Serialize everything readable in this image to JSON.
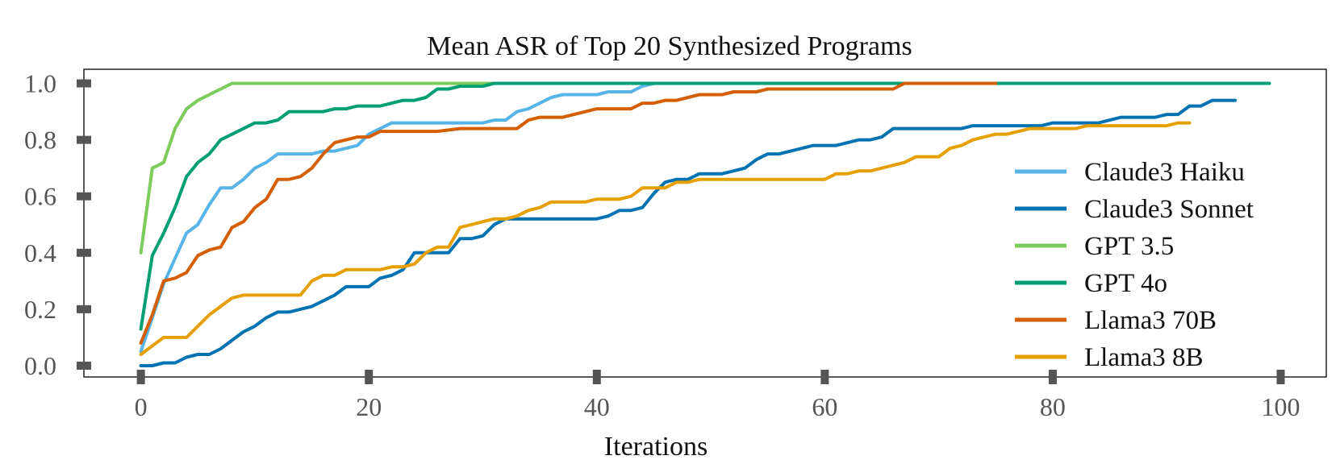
{
  "chart_data": {
    "type": "line",
    "title": "Mean ASR of Top 20 Synthesized Programs",
    "xlabel": "Iterations",
    "ylabel": "",
    "xlim": [
      -5,
      104
    ],
    "ylim": [
      -0.04,
      1.05
    ],
    "xticks": [
      0,
      20,
      40,
      60,
      80,
      100
    ],
    "xtick_labels": [
      "0",
      "20",
      "40",
      "60",
      "80",
      "100"
    ],
    "yticks": [
      0.0,
      0.2,
      0.4,
      0.6,
      0.8,
      1.0
    ],
    "ytick_labels": [
      "0.0",
      "0.2",
      "0.4",
      "0.6",
      "0.8",
      "1.0"
    ],
    "grid": false,
    "legend_position": "center-right",
    "series": [
      {
        "name": "Claude3 Haiku",
        "color": "#56B4E9",
        "x": [
          0,
          1,
          2,
          3,
          4,
          5,
          6,
          7,
          8,
          9,
          10,
          11,
          12,
          13,
          14,
          15,
          16,
          17,
          18,
          19,
          20,
          21,
          22,
          23,
          24,
          25,
          26,
          27,
          28,
          29,
          30,
          31,
          32,
          33,
          34,
          35,
          36,
          37,
          38,
          39,
          40,
          41,
          42,
          43,
          44,
          45,
          46,
          50,
          60,
          70,
          80,
          90,
          99
        ],
        "y": [
          0.05,
          0.17,
          0.29,
          0.38,
          0.47,
          0.5,
          0.57,
          0.63,
          0.63,
          0.66,
          0.7,
          0.72,
          0.75,
          0.75,
          0.75,
          0.75,
          0.76,
          0.76,
          0.77,
          0.78,
          0.82,
          0.84,
          0.86,
          0.86,
          0.86,
          0.86,
          0.86,
          0.86,
          0.86,
          0.86,
          0.86,
          0.87,
          0.87,
          0.9,
          0.91,
          0.93,
          0.95,
          0.96,
          0.96,
          0.96,
          0.96,
          0.97,
          0.97,
          0.97,
          0.99,
          1.0,
          1.0,
          1.0,
          1.0,
          1.0,
          1.0,
          1.0,
          1.0
        ]
      },
      {
        "name": "Claude3 Sonnet",
        "color": "#0072B2",
        "x": [
          0,
          1,
          2,
          3,
          4,
          5,
          6,
          7,
          8,
          9,
          10,
          11,
          12,
          13,
          14,
          15,
          16,
          17,
          18,
          19,
          20,
          21,
          22,
          23,
          24,
          25,
          26,
          27,
          28,
          29,
          30,
          31,
          32,
          33,
          34,
          35,
          36,
          37,
          38,
          39,
          40,
          41,
          42,
          43,
          44,
          45,
          46,
          47,
          48,
          49,
          50,
          51,
          52,
          53,
          54,
          55,
          56,
          57,
          58,
          59,
          60,
          61,
          62,
          63,
          64,
          65,
          66,
          67,
          68,
          69,
          70,
          71,
          72,
          73,
          74,
          75,
          76,
          77,
          78,
          79,
          80,
          81,
          82,
          83,
          84,
          85,
          86,
          87,
          88,
          89,
          90,
          91,
          92,
          93,
          94,
          95,
          96
        ],
        "y": [
          0.0,
          0.0,
          0.01,
          0.01,
          0.03,
          0.04,
          0.04,
          0.06,
          0.09,
          0.12,
          0.14,
          0.17,
          0.19,
          0.19,
          0.2,
          0.21,
          0.23,
          0.25,
          0.28,
          0.28,
          0.28,
          0.31,
          0.32,
          0.34,
          0.4,
          0.4,
          0.4,
          0.4,
          0.45,
          0.45,
          0.46,
          0.5,
          0.52,
          0.52,
          0.52,
          0.52,
          0.52,
          0.52,
          0.52,
          0.52,
          0.52,
          0.53,
          0.55,
          0.55,
          0.56,
          0.61,
          0.65,
          0.66,
          0.66,
          0.68,
          0.68,
          0.68,
          0.69,
          0.7,
          0.73,
          0.75,
          0.75,
          0.76,
          0.77,
          0.78,
          0.78,
          0.78,
          0.79,
          0.8,
          0.8,
          0.81,
          0.84,
          0.84,
          0.84,
          0.84,
          0.84,
          0.84,
          0.84,
          0.85,
          0.85,
          0.85,
          0.85,
          0.85,
          0.85,
          0.85,
          0.86,
          0.86,
          0.86,
          0.86,
          0.86,
          0.87,
          0.88,
          0.88,
          0.88,
          0.88,
          0.89,
          0.89,
          0.92,
          0.92,
          0.94,
          0.94,
          0.94
        ]
      },
      {
        "name": "GPT 3.5",
        "color": "#7CCB5B",
        "x": [
          0,
          1,
          2,
          3,
          4,
          5,
          6,
          7,
          8,
          10,
          20,
          30,
          40,
          50,
          60,
          70,
          80,
          90,
          99
        ],
        "y": [
          0.4,
          0.7,
          0.72,
          0.84,
          0.91,
          0.94,
          0.96,
          0.98,
          1.0,
          1.0,
          1.0,
          1.0,
          1.0,
          1.0,
          1.0,
          1.0,
          1.0,
          1.0,
          1.0
        ]
      },
      {
        "name": "GPT 4o",
        "color": "#009E73",
        "x": [
          0,
          1,
          2,
          3,
          4,
          5,
          6,
          7,
          8,
          9,
          10,
          11,
          12,
          13,
          14,
          15,
          16,
          17,
          18,
          19,
          20,
          21,
          22,
          23,
          24,
          25,
          26,
          27,
          28,
          29,
          30,
          31,
          32,
          40,
          50,
          60,
          70,
          80,
          90,
          99
        ],
        "y": [
          0.13,
          0.39,
          0.47,
          0.56,
          0.67,
          0.72,
          0.75,
          0.8,
          0.82,
          0.84,
          0.86,
          0.86,
          0.87,
          0.9,
          0.9,
          0.9,
          0.9,
          0.91,
          0.91,
          0.92,
          0.92,
          0.92,
          0.93,
          0.94,
          0.94,
          0.95,
          0.98,
          0.98,
          0.99,
          0.99,
          0.99,
          1.0,
          1.0,
          1.0,
          1.0,
          1.0,
          1.0,
          1.0,
          1.0,
          1.0
        ]
      },
      {
        "name": "Llama3 70B",
        "color": "#D55E00",
        "x": [
          0,
          1,
          2,
          3,
          4,
          5,
          6,
          7,
          8,
          9,
          10,
          11,
          12,
          13,
          14,
          15,
          16,
          17,
          18,
          19,
          20,
          21,
          22,
          24,
          26,
          28,
          30,
          32,
          33,
          34,
          35,
          36,
          37,
          38,
          39,
          40,
          41,
          42,
          43,
          44,
          45,
          46,
          47,
          48,
          49,
          50,
          51,
          52,
          53,
          54,
          55,
          56,
          60,
          64,
          66,
          67,
          70,
          75
        ],
        "y": [
          0.08,
          0.18,
          0.3,
          0.31,
          0.33,
          0.39,
          0.41,
          0.42,
          0.49,
          0.51,
          0.56,
          0.59,
          0.66,
          0.66,
          0.67,
          0.7,
          0.75,
          0.79,
          0.8,
          0.81,
          0.81,
          0.83,
          0.83,
          0.83,
          0.83,
          0.84,
          0.84,
          0.84,
          0.84,
          0.87,
          0.88,
          0.88,
          0.88,
          0.89,
          0.9,
          0.91,
          0.91,
          0.91,
          0.91,
          0.93,
          0.93,
          0.94,
          0.94,
          0.95,
          0.96,
          0.96,
          0.96,
          0.97,
          0.97,
          0.97,
          0.98,
          0.98,
          0.98,
          0.98,
          0.98,
          1.0,
          1.0,
          1.0
        ]
      },
      {
        "name": "Llama3 8B",
        "color": "#E69F00",
        "x": [
          0,
          1,
          2,
          3,
          4,
          5,
          6,
          7,
          8,
          9,
          10,
          11,
          12,
          13,
          14,
          15,
          16,
          17,
          18,
          19,
          20,
          21,
          22,
          23,
          24,
          25,
          26,
          27,
          28,
          29,
          30,
          31,
          32,
          33,
          34,
          35,
          36,
          37,
          38,
          39,
          40,
          41,
          42,
          43,
          44,
          45,
          46,
          47,
          48,
          49,
          50,
          52,
          54,
          56,
          58,
          60,
          61,
          62,
          63,
          64,
          65,
          66,
          67,
          68,
          69,
          70,
          71,
          72,
          73,
          74,
          75,
          76,
          77,
          78,
          79,
          80,
          81,
          82,
          83,
          84,
          85,
          86,
          88,
          90,
          91,
          92
        ],
        "y": [
          0.04,
          0.07,
          0.1,
          0.1,
          0.1,
          0.14,
          0.18,
          0.21,
          0.24,
          0.25,
          0.25,
          0.25,
          0.25,
          0.25,
          0.25,
          0.3,
          0.32,
          0.32,
          0.34,
          0.34,
          0.34,
          0.34,
          0.35,
          0.35,
          0.36,
          0.4,
          0.42,
          0.42,
          0.49,
          0.5,
          0.51,
          0.52,
          0.52,
          0.53,
          0.55,
          0.56,
          0.58,
          0.58,
          0.58,
          0.58,
          0.59,
          0.59,
          0.59,
          0.6,
          0.63,
          0.63,
          0.63,
          0.65,
          0.65,
          0.66,
          0.66,
          0.66,
          0.66,
          0.66,
          0.66,
          0.66,
          0.68,
          0.68,
          0.69,
          0.69,
          0.7,
          0.71,
          0.72,
          0.74,
          0.74,
          0.74,
          0.77,
          0.78,
          0.8,
          0.81,
          0.82,
          0.82,
          0.83,
          0.84,
          0.84,
          0.84,
          0.84,
          0.84,
          0.85,
          0.85,
          0.85,
          0.85,
          0.85,
          0.85,
          0.86,
          0.86
        ]
      }
    ]
  }
}
